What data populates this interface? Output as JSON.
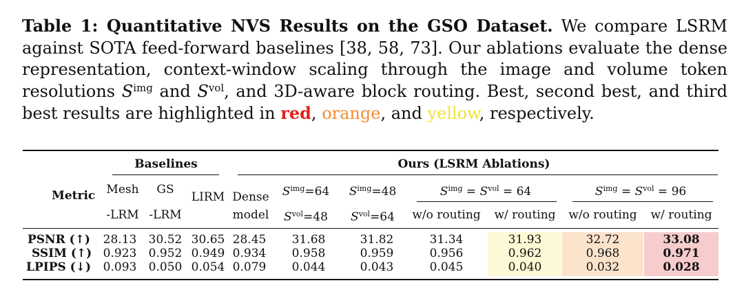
{
  "caption": {
    "title": "Table 1: Quantitative NVS Results on the GSO Dataset.",
    "text_1": " We compare LSRM against SOTA feed-forward baselines [38, 58, 73]. Our ablations evaluate the dense representation, context-window scaling through the image and volume token resolutions ",
    "sym_img": "S",
    "sup_img": "img",
    "and": " and ",
    "sym_vol": "S",
    "sup_vol": "vol",
    "text_2": ", and 3D-aware block routing. Best, second best, and third best results are highlighted in ",
    "red_word": "red",
    "sep_1": ", ",
    "orange_word": "orange",
    "sep_2": ", and ",
    "yellow_word": "yellow",
    "text_3": ", respectively."
  },
  "colors": {
    "red_text": "#e3201b",
    "orange_text": "#f28b30",
    "yellow_text": "#f0e23a",
    "best_bg": "#f6cccc",
    "second_bg": "#fbe3cc",
    "third_bg": "#fdf9d6"
  },
  "table": {
    "group_baselines": "Baselines",
    "group_ours": "Ours (LSRM Ablations)",
    "metric_header": "Metric",
    "col_mesh_1": "Mesh",
    "col_mesh_2": "-LRM",
    "col_gs_1": "GS",
    "col_gs_2": "-LRM",
    "col_lirm": "LIRM",
    "col_dense_1": "Dense",
    "col_dense_2": "model",
    "col_a_1": "S^img = 64",
    "col_a_2": "S^vol = 48",
    "col_b_1": "S^img = 48",
    "col_b_2": "S^vol = 64",
    "group_64": "S^img = S^vol = 64",
    "group_96": "S^img = S^vol = 96",
    "wo_routing": "w/o routing",
    "w_routing": "w/ routing",
    "rows": [
      {
        "metric": "PSNR (↑)",
        "values": [
          "28.13",
          "30.52",
          "30.65",
          "28.45",
          "31.68",
          "31.82",
          "31.34",
          "31.93",
          "32.72",
          "33.08"
        ]
      },
      {
        "metric": "SSIM (↑)",
        "values": [
          "0.923",
          "0.952",
          "0.949",
          "0.934",
          "0.958",
          "0.959",
          "0.956",
          "0.962",
          "0.968",
          "0.971"
        ]
      },
      {
        "metric": "LPIPS (↓)",
        "values": [
          "0.093",
          "0.050",
          "0.054",
          "0.079",
          "0.044",
          "0.043",
          "0.045",
          "0.040",
          "0.032",
          "0.028"
        ]
      }
    ]
  }
}
